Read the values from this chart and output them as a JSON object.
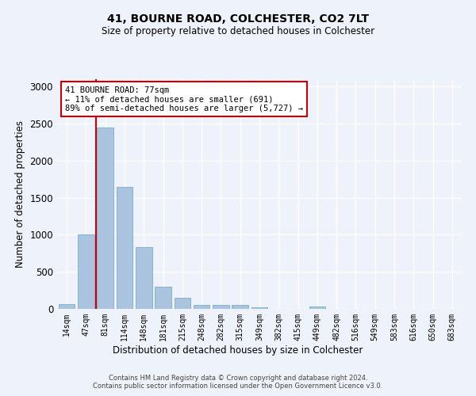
{
  "title1": "41, BOURNE ROAD, COLCHESTER, CO2 7LT",
  "title2": "Size of property relative to detached houses in Colchester",
  "xlabel": "Distribution of detached houses by size in Colchester",
  "ylabel": "Number of detached properties",
  "categories": [
    "14sqm",
    "47sqm",
    "81sqm",
    "114sqm",
    "148sqm",
    "181sqm",
    "215sqm",
    "248sqm",
    "282sqm",
    "315sqm",
    "349sqm",
    "382sqm",
    "415sqm",
    "449sqm",
    "482sqm",
    "516sqm",
    "549sqm",
    "583sqm",
    "616sqm",
    "650sqm",
    "683sqm"
  ],
  "values": [
    60,
    1000,
    2450,
    1650,
    830,
    300,
    145,
    55,
    55,
    50,
    25,
    0,
    0,
    35,
    0,
    0,
    0,
    0,
    0,
    0,
    0
  ],
  "bar_color": "#aac4df",
  "bar_edge_color": "#7aaecb",
  "vline_color": "#cc0000",
  "annotation_text": "41 BOURNE ROAD: 77sqm\n← 11% of detached houses are smaller (691)\n89% of semi-detached houses are larger (5,727) →",
  "annotation_box_color": "#ffffff",
  "annotation_box_edge_color": "#cc0000",
  "ylim": [
    0,
    3100
  ],
  "yticks": [
    0,
    500,
    1000,
    1500,
    2000,
    2500,
    3000
  ],
  "background_color": "#eef2fb",
  "grid_color": "#ffffff",
  "footer1": "Contains HM Land Registry data © Crown copyright and database right 2024.",
  "footer2": "Contains public sector information licensed under the Open Government Licence v3.0."
}
